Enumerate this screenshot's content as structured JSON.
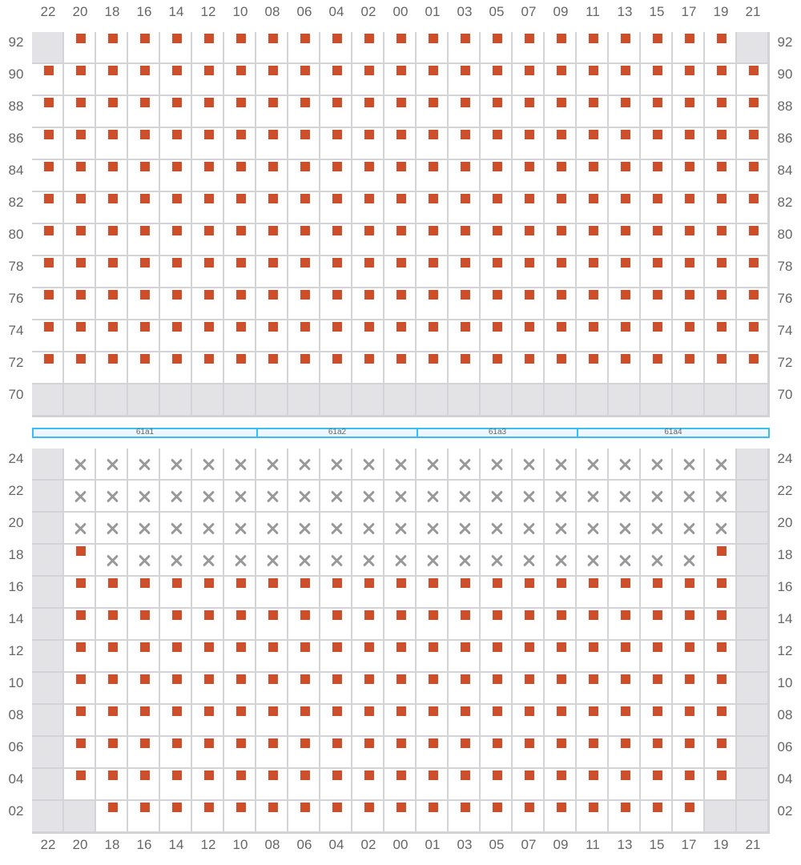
{
  "colors": {
    "available": "#cc4e2a",
    "taken": "#999999",
    "disabled": "#e3e3e6",
    "section_border": "#3bbcf2"
  },
  "legend_codes": {
    "s": "available-seat",
    "x": "taken-seat",
    "d": "unavailable"
  },
  "columns": [
    "22",
    "20",
    "18",
    "16",
    "14",
    "12",
    "10",
    "08",
    "06",
    "04",
    "02",
    "00",
    "01",
    "03",
    "05",
    "07",
    "09",
    "11",
    "13",
    "15",
    "17",
    "19",
    "21"
  ],
  "sections": [
    {
      "label": "61a1",
      "span": 7
    },
    {
      "label": "61a2",
      "span": 5
    },
    {
      "label": "61a3",
      "span": 5
    },
    {
      "label": "61a4",
      "span": 6
    }
  ],
  "upper_block": [
    {
      "row": "92",
      "seats": "dsssssssssssssssssssssd"
    },
    {
      "row": "90",
      "seats": "sssssssssssssssssssssss"
    },
    {
      "row": "88",
      "seats": "sssssssssssssssssssssss"
    },
    {
      "row": "86",
      "seats": "sssssssssssssssssssssss"
    },
    {
      "row": "84",
      "seats": "sssssssssssssssssssssss"
    },
    {
      "row": "82",
      "seats": "sssssssssssssssssssssss"
    },
    {
      "row": "80",
      "seats": "sssssssssssssssssssssss"
    },
    {
      "row": "78",
      "seats": "sssssssssssssssssssssss"
    },
    {
      "row": "76",
      "seats": "sssssssssssssssssssssss"
    },
    {
      "row": "74",
      "seats": "sssssssssssssssssssssss"
    },
    {
      "row": "72",
      "seats": "sssssssssssssssssssssss"
    },
    {
      "row": "70",
      "seats": "ddddddddddddddddddddddd"
    }
  ],
  "lower_block": [
    {
      "row": "24",
      "seats": "dxxxxxxxxxxxxxxxxxxxxxd"
    },
    {
      "row": "22",
      "seats": "dxxxxxxxxxxxxxxxxxxxxxd"
    },
    {
      "row": "20",
      "seats": "dxxxxxxxxxxxxxxxxxxxxxd"
    },
    {
      "row": "18",
      "seats": "dsxxxxxxxxxxxxxxxxxxxsd"
    },
    {
      "row": "16",
      "seats": "dsssssssssssssssssssssd"
    },
    {
      "row": "14",
      "seats": "dsssssssssssssssssssssd"
    },
    {
      "row": "12",
      "seats": "dsssssssssssssssssssssd"
    },
    {
      "row": "10",
      "seats": "dsssssssssssssssssssssd"
    },
    {
      "row": "08",
      "seats": "dsssssssssssssssssssssd"
    },
    {
      "row": "06",
      "seats": "dsssssssssssssssssssssd"
    },
    {
      "row": "04",
      "seats": "dsssssssssssssssssssssd"
    },
    {
      "row": "02",
      "seats": "ddsssssssssssssssssssdd"
    }
  ]
}
